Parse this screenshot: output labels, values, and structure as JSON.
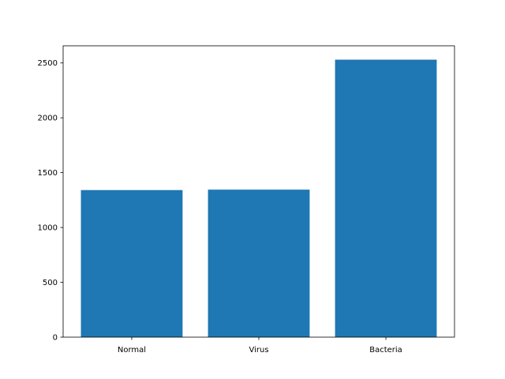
{
  "chart_data": {
    "type": "bar",
    "categories": [
      "Normal",
      "Virus",
      "Bacteria"
    ],
    "values": [
      1341,
      1345,
      2530
    ],
    "yticks": [
      0,
      500,
      1000,
      1500,
      2000,
      2500
    ],
    "ylim": [
      0,
      2656.5
    ],
    "bar_color": "#1f77b4",
    "title": "",
    "xlabel": "",
    "ylabel": "",
    "grid": false
  }
}
